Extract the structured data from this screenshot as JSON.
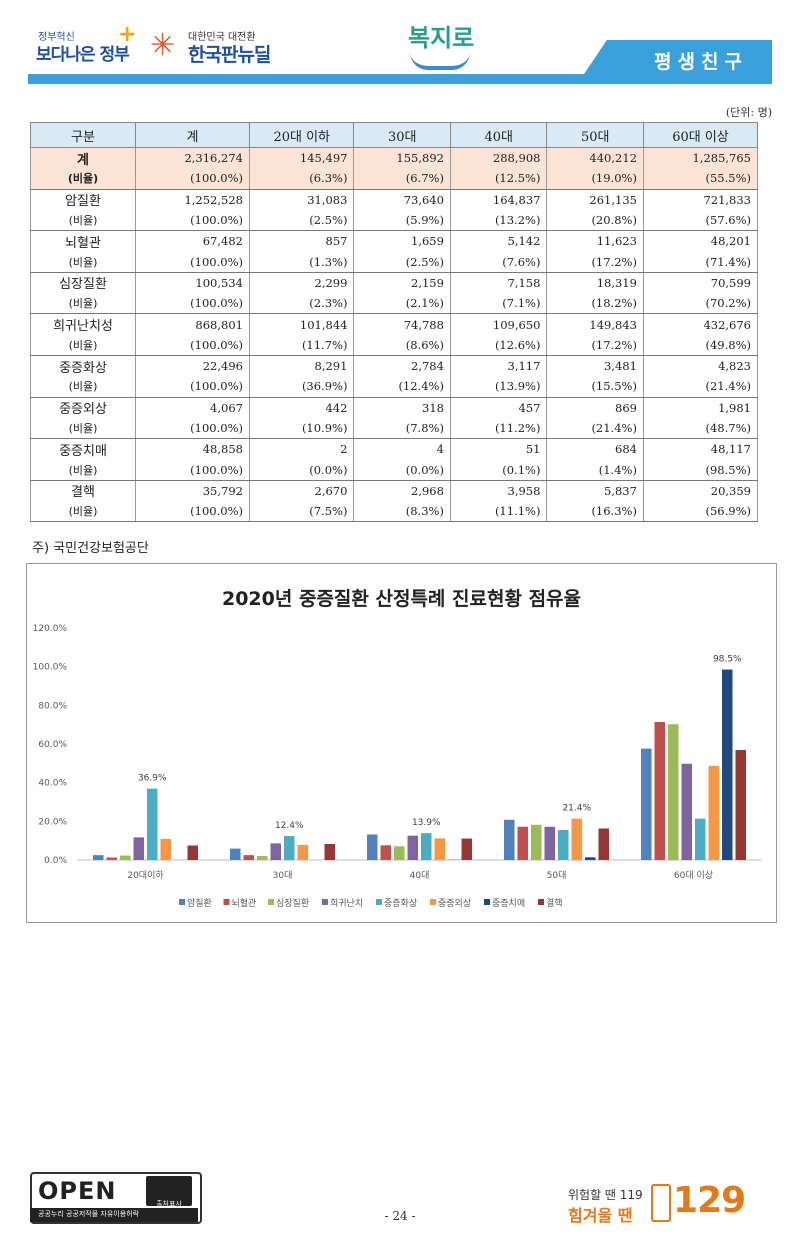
{
  "header": {
    "logo1_top": "정부혁신",
    "logo1_main": "보다나은 정부",
    "logo2_top": "대한민국 대전환",
    "logo2_main": "한국판뉴딜",
    "logo3": "복지로",
    "tab_label": "평생친구"
  },
  "unit_label": "(단위: 명)",
  "table": {
    "headers": [
      "구분",
      "계",
      "20대 이하",
      "30대",
      "40대",
      "50대",
      "60대 이상"
    ],
    "rows": [
      {
        "label": "계",
        "kind": "main",
        "values": [
          "2,316,274",
          "145,497",
          "155,892",
          "288,908",
          "440,212",
          "1,285,765"
        ]
      },
      {
        "label": "(비율)",
        "kind": "rate",
        "values": [
          "(100.0%)",
          "(6.3%)",
          "(6.7%)",
          "(12.5%)",
          "(19.0%)",
          "(55.5%)"
        ]
      },
      {
        "label": "암질환",
        "kind": "main",
        "values": [
          "1,252,528",
          "31,083",
          "73,640",
          "164,837",
          "261,135",
          "721,833"
        ]
      },
      {
        "label": "(비율)",
        "kind": "rate",
        "values": [
          "(100.0%)",
          "(2.5%)",
          "(5.9%)",
          "(13.2%)",
          "(20.8%)",
          "(57.6%)"
        ]
      },
      {
        "label": "뇌혈관",
        "kind": "main",
        "values": [
          "67,482",
          "857",
          "1,659",
          "5,142",
          "11,623",
          "48,201"
        ]
      },
      {
        "label": "(비율)",
        "kind": "rate",
        "values": [
          "(100.0%)",
          "(1.3%)",
          "(2.5%)",
          "(7.6%)",
          "(17.2%)",
          "(71.4%)"
        ]
      },
      {
        "label": "심장질환",
        "kind": "main",
        "values": [
          "100,534",
          "2,299",
          "2,159",
          "7,158",
          "18,319",
          "70,599"
        ]
      },
      {
        "label": "(비율)",
        "kind": "rate",
        "values": [
          "(100.0%)",
          "(2.3%)",
          "(2.1%)",
          "(7.1%)",
          "(18.2%)",
          "(70.2%)"
        ]
      },
      {
        "label": "희귀난치성",
        "kind": "main",
        "values": [
          "868,801",
          "101,844",
          "74,788",
          "109,650",
          "149,843",
          "432,676"
        ]
      },
      {
        "label": "(비율)",
        "kind": "rate",
        "values": [
          "(100.0%)",
          "(11.7%)",
          "(8.6%)",
          "(12.6%)",
          "(17.2%)",
          "(49.8%)"
        ]
      },
      {
        "label": "중증화상",
        "kind": "main",
        "values": [
          "22,496",
          "8,291",
          "2,784",
          "3,117",
          "3,481",
          "4,823"
        ]
      },
      {
        "label": "(비율)",
        "kind": "rate",
        "values": [
          "(100.0%)",
          "(36.9%)",
          "(12.4%)",
          "(13.9%)",
          "(15.5%)",
          "(21.4%)"
        ]
      },
      {
        "label": "중증외상",
        "kind": "main",
        "values": [
          "4,067",
          "442",
          "318",
          "457",
          "869",
          "1,981"
        ]
      },
      {
        "label": "(비율)",
        "kind": "rate",
        "values": [
          "(100.0%)",
          "(10.9%)",
          "(7.8%)",
          "(11.2%)",
          "(21.4%)",
          "(48.7%)"
        ]
      },
      {
        "label": "중증치매",
        "kind": "main",
        "values": [
          "48,858",
          "2",
          "4",
          "51",
          "684",
          "48,117"
        ]
      },
      {
        "label": "(비율)",
        "kind": "rate",
        "values": [
          "(100.0%)",
          "(0.0%)",
          "(0.0%)",
          "(0.1%)",
          "(1.4%)",
          "(98.5%)"
        ]
      },
      {
        "label": "결핵",
        "kind": "main",
        "values": [
          "35,792",
          "2,670",
          "2,968",
          "3,958",
          "5,837",
          "20,359"
        ]
      },
      {
        "label": "(비율)",
        "kind": "rate",
        "values": [
          "(100.0%)",
          "(7.5%)",
          "(8.3%)",
          "(11.1%)",
          "(16.3%)",
          "(56.9%)"
        ]
      }
    ]
  },
  "note": "주) 국민건강보험공단",
  "chart_data": {
    "type": "bar",
    "title": "2020년 중증질환 산정특례 진료현황 점유율",
    "categories": [
      "20대이하",
      "30대",
      "40대",
      "50대",
      "60대 이상"
    ],
    "ylim": [
      0,
      120
    ],
    "yticks": [
      "0.0%",
      "20.0%",
      "40.0%",
      "60.0%",
      "80.0%",
      "100.0%",
      "120.0%"
    ],
    "legend_position": "bottom",
    "series": [
      {
        "name": "암질환",
        "color": "#4f81bd",
        "values": [
          2.5,
          5.9,
          13.2,
          20.8,
          57.6
        ]
      },
      {
        "name": "뇌혈관",
        "color": "#c0504d",
        "values": [
          1.3,
          2.5,
          7.6,
          17.2,
          71.4
        ]
      },
      {
        "name": "심장질환",
        "color": "#9bbb59",
        "values": [
          2.3,
          2.1,
          7.1,
          18.2,
          70.2
        ]
      },
      {
        "name": "희귀난치",
        "color": "#8064a2",
        "values": [
          11.7,
          8.6,
          12.6,
          17.2,
          49.8
        ]
      },
      {
        "name": "중증화상",
        "color": "#4bacc6",
        "values": [
          36.9,
          12.4,
          13.9,
          15.5,
          21.4
        ]
      },
      {
        "name": "중증외상",
        "color": "#f79646",
        "values": [
          10.9,
          7.8,
          11.2,
          21.4,
          48.7
        ]
      },
      {
        "name": "중증치매",
        "color": "#1f497d",
        "values": [
          0.0,
          0.0,
          0.1,
          1.4,
          98.5
        ]
      },
      {
        "name": "결핵",
        "color": "#953735",
        "values": [
          7.5,
          8.3,
          11.1,
          16.3,
          56.9
        ]
      }
    ],
    "data_labels": [
      {
        "series": "중증화상",
        "category": "20대이하",
        "text": "36.9%"
      },
      {
        "series": "중증화상",
        "category": "30대",
        "text": "12.4%"
      },
      {
        "series": "중증화상",
        "category": "40대",
        "text": "13.9%"
      },
      {
        "series": "중증외상",
        "category": "50대",
        "text": "21.4%"
      },
      {
        "series": "중증치매",
        "category": "60대 이상",
        "text": "98.5%"
      }
    ]
  },
  "footer": {
    "open_label": "OPEN",
    "open_sub": "공공누리  공공저작물 자유이용허락",
    "cc_label": "출처표시",
    "page_number": "- 24 -",
    "hotline_top": "위험할 땐 119",
    "hotline_main": "힘겨울 땐",
    "hotline_number": "129"
  }
}
